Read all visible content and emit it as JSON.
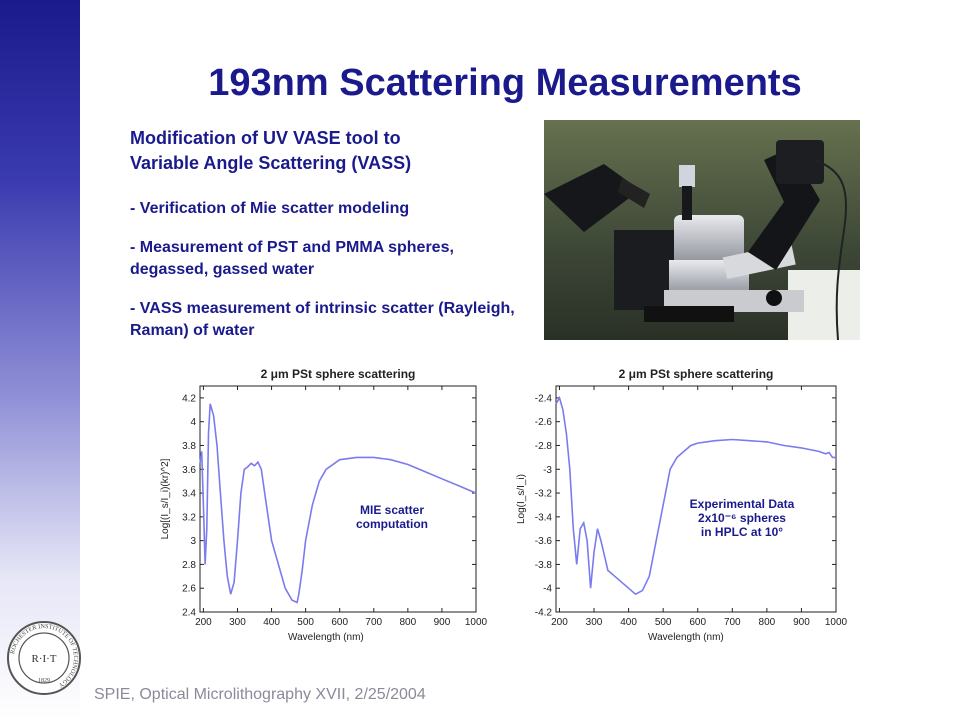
{
  "slide": {
    "title": "193nm Scattering Measurements",
    "heading_line1": "Modification of UV VASE tool to",
    "heading_line2": "Variable Angle Scattering (VASS)",
    "bullets": [
      "-  Verification of Mie scatter modeling",
      "-  Measurement of PST and PMMA spheres, degassed, gassed water",
      "-  VASS measurement of intrinsic scatter (Rayleigh, Raman) of water"
    ],
    "footer": "SPIE, Optical Microlithography XVII, 2/25/2004",
    "seal_text": "R·I·T",
    "seal_ring": "ROCHESTER INSTITUTE OF TECHNOLOGY",
    "seal_year": "1829",
    "accent_color": "#1a1a8c",
    "curve_color": "#7b7bf0"
  },
  "chart_data": [
    {
      "type": "line",
      "title": "2 μm PSt sphere scattering",
      "xlabel": "Wavelength (nm)",
      "ylabel": "Log[(I_s/I_i)(kr)^2]",
      "annotation_line1": "MIE scatter",
      "annotation_line2": "computation",
      "xlim": [
        190,
        1000
      ],
      "ylim": [
        2.4,
        4.3
      ],
      "xticks": [
        200,
        300,
        400,
        500,
        600,
        700,
        800,
        900,
        1000
      ],
      "yticks": [
        2.4,
        2.6,
        2.8,
        3,
        3.2,
        3.4,
        3.6,
        3.8,
        4,
        4.2
      ],
      "grid": false,
      "series": [
        {
          "x": [
            190,
            195,
            200,
            205,
            210,
            215,
            220,
            230,
            240,
            250,
            260,
            270,
            280,
            290,
            300,
            310,
            320,
            330,
            340,
            350,
            360,
            370,
            380,
            400,
            420,
            440,
            460,
            475,
            480,
            490,
            500,
            520,
            540,
            560,
            600,
            650,
            700,
            750,
            800,
            850,
            900,
            950,
            1000
          ],
          "y": [
            3.65,
            3.75,
            3.3,
            2.8,
            3.1,
            3.9,
            4.15,
            4.05,
            3.8,
            3.4,
            3.0,
            2.7,
            2.55,
            2.65,
            3.0,
            3.4,
            3.6,
            3.62,
            3.65,
            3.63,
            3.66,
            3.6,
            3.4,
            3.0,
            2.8,
            2.6,
            2.5,
            2.48,
            2.55,
            2.75,
            3.0,
            3.3,
            3.5,
            3.6,
            3.68,
            3.7,
            3.7,
            3.68,
            3.64,
            3.58,
            3.52,
            3.46,
            3.4
          ]
        }
      ]
    },
    {
      "type": "line",
      "title": "2 μm PSt sphere scattering",
      "xlabel": "Wavelength (nm)",
      "ylabel": "Log(I_s/I_i)",
      "annotation_line1": "Experimental Data",
      "annotation_line2": "2x10⁻⁶ spheres",
      "annotation_line3": "in HPLC at 10°",
      "xlim": [
        190,
        1000
      ],
      "ylim": [
        -4.2,
        -2.3
      ],
      "xticks": [
        200,
        300,
        400,
        500,
        600,
        700,
        800,
        900,
        1000
      ],
      "yticks": [
        -4.2,
        -4,
        -3.8,
        -3.6,
        -3.4,
        -3.2,
        -3,
        -2.8,
        -2.6,
        -2.4
      ],
      "grid": false,
      "series": [
        {
          "x": [
            190,
            200,
            210,
            220,
            230,
            240,
            250,
            260,
            270,
            280,
            290,
            300,
            310,
            320,
            340,
            360,
            380,
            400,
            420,
            440,
            460,
            480,
            500,
            520,
            540,
            560,
            580,
            600,
            650,
            700,
            750,
            800,
            850,
            900,
            950,
            970,
            980,
            990,
            1000
          ],
          "y": [
            -2.45,
            -2.4,
            -2.5,
            -2.7,
            -3.0,
            -3.5,
            -3.8,
            -3.5,
            -3.45,
            -3.6,
            -4.0,
            -3.7,
            -3.5,
            -3.6,
            -3.85,
            -3.9,
            -3.95,
            -4.0,
            -4.05,
            -4.02,
            -3.9,
            -3.6,
            -3.3,
            -3.0,
            -2.9,
            -2.85,
            -2.8,
            -2.78,
            -2.76,
            -2.75,
            -2.76,
            -2.77,
            -2.8,
            -2.82,
            -2.85,
            -2.87,
            -2.86,
            -2.9,
            -2.9
          ]
        }
      ]
    }
  ]
}
